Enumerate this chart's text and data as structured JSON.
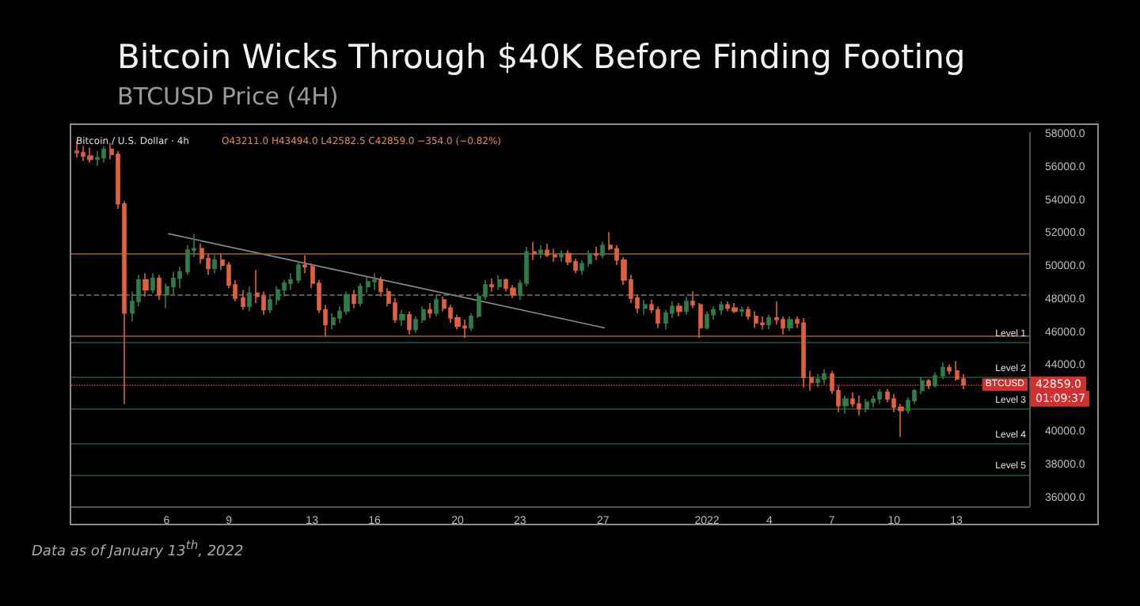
{
  "chart_data": {
    "type": "candlestick",
    "title": "Bitcoin Wicks Through $40K Before Finding Footing",
    "subtitle": "BTCUSD Price (4H)",
    "x": [
      "2021-12-01T16:00",
      "2021-12-02T00:00",
      "2021-12-02T08:00",
      "2021-12-02T16:00",
      "2021-12-03T00:00",
      "2021-12-03T08:00",
      "2021-12-03T16:00",
      "2021-12-04T00:00",
      "2021-12-04T08:00",
      "2021-12-04T16:00",
      "2021-12-05T00:00",
      "2021-12-05T08:00",
      "2021-12-05T16:00",
      "2021-12-06T00:00",
      "2021-12-06T08:00",
      "2021-12-06T16:00",
      "2021-12-07T00:00",
      "2021-12-07T08:00",
      "2021-12-07T16:00",
      "2021-12-08T00:00",
      "2021-12-08T08:00",
      "2021-12-08T16:00",
      "2021-12-09T00:00",
      "2021-12-09T08:00",
      "2021-12-09T16:00",
      "2021-12-10T00:00",
      "2021-12-10T08:00",
      "2021-12-10T16:00",
      "2021-12-11T00:00",
      "2021-12-11T08:00",
      "2021-12-11T16:00",
      "2021-12-12T00:00",
      "2021-12-12T08:00",
      "2021-12-12T16:00",
      "2021-12-13T00:00",
      "2021-12-13T08:00",
      "2021-12-13T16:00",
      "2021-12-14T00:00",
      "2021-12-14T08:00",
      "2021-12-14T16:00",
      "2021-12-15T00:00",
      "2021-12-15T08:00",
      "2021-12-15T16:00",
      "2021-12-16T00:00",
      "2021-12-16T08:00",
      "2021-12-16T16:00",
      "2021-12-17T00:00",
      "2021-12-17T08:00",
      "2021-12-17T16:00",
      "2021-12-18T00:00",
      "2021-12-18T08:00",
      "2021-12-18T16:00",
      "2021-12-19T00:00",
      "2021-12-19T08:00",
      "2021-12-19T16:00",
      "2021-12-20T00:00",
      "2021-12-20T08:00",
      "2021-12-20T16:00",
      "2021-12-21T00:00",
      "2021-12-21T08:00",
      "2021-12-21T16:00",
      "2021-12-22T00:00",
      "2021-12-22T08:00",
      "2021-12-22T16:00",
      "2021-12-23T00:00",
      "2021-12-23T08:00",
      "2021-12-23T16:00",
      "2021-12-24T00:00",
      "2021-12-24T08:00",
      "2021-12-24T16:00",
      "2021-12-25T00:00",
      "2021-12-25T08:00",
      "2021-12-25T16:00",
      "2021-12-26T00:00",
      "2021-12-26T08:00",
      "2021-12-26T16:00",
      "2021-12-27T00:00",
      "2021-12-27T08:00",
      "2021-12-27T16:00",
      "2021-12-28T00:00",
      "2021-12-28T08:00",
      "2021-12-28T16:00",
      "2021-12-29T00:00",
      "2021-12-29T08:00",
      "2021-12-29T16:00",
      "2021-12-30T00:00",
      "2021-12-30T08:00",
      "2021-12-30T16:00",
      "2021-12-31T00:00",
      "2021-12-31T08:00",
      "2021-12-31T16:00",
      "2022-01-01T00:00",
      "2022-01-01T08:00",
      "2022-01-01T16:00",
      "2022-01-02T00:00",
      "2022-01-02T08:00",
      "2022-01-02T16:00",
      "2022-01-03T00:00",
      "2022-01-03T08:00",
      "2022-01-03T16:00",
      "2022-01-04T00:00",
      "2022-01-04T08:00",
      "2022-01-04T16:00",
      "2022-01-05T00:00",
      "2022-01-05T08:00",
      "2022-01-05T16:00",
      "2022-01-06T00:00",
      "2022-01-06T08:00",
      "2022-01-06T16:00",
      "2022-01-07T00:00",
      "2022-01-07T08:00",
      "2022-01-07T16:00",
      "2022-01-08T00:00",
      "2022-01-08T08:00",
      "2022-01-08T16:00",
      "2022-01-09T00:00",
      "2022-01-09T08:00",
      "2022-01-09T16:00",
      "2022-01-10T00:00",
      "2022-01-10T08:00",
      "2022-01-10T16:00",
      "2022-01-11T00:00",
      "2022-01-11T08:00",
      "2022-01-11T16:00",
      "2022-01-12T00:00",
      "2022-01-12T08:00",
      "2022-01-12T16:00",
      "2022-01-13T00:00",
      "2022-01-13T08:00"
    ],
    "ohlc": [
      [
        57000,
        57600,
        56600,
        56900
      ],
      [
        56900,
        57300,
        56400,
        56700
      ],
      [
        56700,
        57200,
        56300,
        56500
      ],
      [
        56500,
        57000,
        56100,
        56600
      ],
      [
        56600,
        57300,
        56300,
        57100
      ],
      [
        57100,
        57500,
        56500,
        56800
      ],
      [
        56800,
        57000,
        53500,
        53800
      ],
      [
        53800,
        54000,
        41700,
        47200
      ],
      [
        47200,
        48500,
        46700,
        47900
      ],
      [
        47900,
        49500,
        47600,
        49200
      ],
      [
        49200,
        49600,
        48200,
        48600
      ],
      [
        48600,
        49600,
        48400,
        49300
      ],
      [
        49300,
        49500,
        48000,
        48300
      ],
      [
        48300,
        49000,
        47500,
        48800
      ],
      [
        48800,
        49700,
        48300,
        49300
      ],
      [
        49300,
        50000,
        48700,
        49700
      ],
      [
        49700,
        51300,
        49500,
        51000
      ],
      [
        51000,
        52000,
        50600,
        51100
      ],
      [
        51100,
        51400,
        50200,
        50500
      ],
      [
        50500,
        50800,
        49500,
        49900
      ],
      [
        49900,
        50700,
        49600,
        50400
      ],
      [
        50400,
        50800,
        49800,
        50100
      ],
      [
        50100,
        50300,
        48700,
        48900
      ],
      [
        48900,
        49200,
        47900,
        48100
      ],
      [
        48100,
        48600,
        47400,
        47600
      ],
      [
        47600,
        48800,
        47300,
        48400
      ],
      [
        48400,
        49800,
        47800,
        48200
      ],
      [
        48200,
        48500,
        47100,
        47400
      ],
      [
        47400,
        48300,
        47200,
        48000
      ],
      [
        48000,
        48800,
        47700,
        48600
      ],
      [
        48600,
        49200,
        48200,
        49000
      ],
      [
        49000,
        49600,
        48600,
        49200
      ],
      [
        49200,
        50300,
        49000,
        50100
      ],
      [
        50100,
        50700,
        49600,
        50000
      ],
      [
        50000,
        50200,
        48700,
        49000
      ],
      [
        49000,
        49200,
        47200,
        47400
      ],
      [
        47400,
        47700,
        45800,
        46500
      ],
      [
        46500,
        47200,
        46200,
        46900
      ],
      [
        46900,
        47600,
        46600,
        47300
      ],
      [
        47300,
        48500,
        47100,
        48300
      ],
      [
        48300,
        48600,
        47500,
        47800
      ],
      [
        47800,
        49000,
        47600,
        48800
      ],
      [
        48800,
        49400,
        48400,
        49100
      ],
      [
        49100,
        49600,
        48600,
        49200
      ],
      [
        49200,
        49400,
        48200,
        48500
      ],
      [
        48500,
        48700,
        47600,
        47800
      ],
      [
        47800,
        48100,
        46600,
        46800
      ],
      [
        46800,
        47400,
        46400,
        47100
      ],
      [
        47100,
        47300,
        45900,
        46200
      ],
      [
        46200,
        47000,
        46000,
        46800
      ],
      [
        46800,
        47600,
        46600,
        47400
      ],
      [
        47400,
        47800,
        46900,
        47200
      ],
      [
        47200,
        48300,
        47000,
        48000
      ],
      [
        48000,
        48200,
        47300,
        47500
      ],
      [
        47500,
        47700,
        46600,
        46900
      ],
      [
        46900,
        47100,
        46200,
        46400
      ],
      [
        46400,
        46800,
        45700,
        46300
      ],
      [
        46300,
        47200,
        46100,
        47000
      ],
      [
        47000,
        48400,
        46900,
        48200
      ],
      [
        48200,
        49200,
        48000,
        48900
      ],
      [
        48900,
        49300,
        48500,
        48800
      ],
      [
        48800,
        49500,
        48600,
        49200
      ],
      [
        49200,
        49300,
        48500,
        48700
      ],
      [
        48700,
        48900,
        48100,
        48300
      ],
      [
        48300,
        49200,
        48000,
        49000
      ],
      [
        49000,
        51200,
        48800,
        50900
      ],
      [
        50900,
        51500,
        50400,
        50800
      ],
      [
        50800,
        51300,
        50500,
        51000
      ],
      [
        51000,
        51400,
        50600,
        50700
      ],
      [
        50700,
        51100,
        50300,
        50600
      ],
      [
        50600,
        51000,
        50300,
        50800
      ],
      [
        50800,
        51000,
        50100,
        50300
      ],
      [
        50300,
        50500,
        49600,
        49800
      ],
      [
        49800,
        50400,
        49500,
        50200
      ],
      [
        50200,
        51000,
        50000,
        50800
      ],
      [
        50800,
        51200,
        50400,
        50700
      ],
      [
        50700,
        51500,
        50500,
        51300
      ],
      [
        51300,
        52100,
        51000,
        51100
      ],
      [
        51100,
        51300,
        50100,
        50400
      ],
      [
        50400,
        50600,
        48900,
        49200
      ],
      [
        49200,
        49500,
        47800,
        48100
      ],
      [
        48100,
        48300,
        47200,
        47500
      ],
      [
        47500,
        48000,
        47100,
        47700
      ],
      [
        47700,
        48000,
        47200,
        47400
      ],
      [
        47400,
        47600,
        46300,
        46600
      ],
      [
        46600,
        47400,
        46200,
        47200
      ],
      [
        47200,
        47900,
        46900,
        47600
      ],
      [
        47600,
        47800,
        47000,
        47300
      ],
      [
        47300,
        48200,
        47100,
        47900
      ],
      [
        47900,
        48500,
        47500,
        47700
      ],
      [
        47700,
        47800,
        45700,
        46300
      ],
      [
        46300,
        47300,
        46200,
        47100
      ],
      [
        47100,
        47600,
        46800,
        47400
      ],
      [
        47400,
        47900,
        47100,
        47700
      ],
      [
        47700,
        47900,
        47300,
        47500
      ],
      [
        47500,
        47800,
        47200,
        47300
      ],
      [
        47300,
        47600,
        47000,
        47400
      ],
      [
        47400,
        47600,
        46800,
        47000
      ],
      [
        47000,
        47300,
        46300,
        46600
      ],
      [
        46600,
        47000,
        46200,
        46500
      ],
      [
        46500,
        47100,
        46200,
        46900
      ],
      [
        46900,
        47900,
        46500,
        46800
      ],
      [
        46800,
        47000,
        45900,
        46300
      ],
      [
        46300,
        47000,
        46100,
        46800
      ],
      [
        46800,
        47000,
        46300,
        46600
      ],
      [
        46600,
        46900,
        42700,
        43300
      ],
      [
        43300,
        43700,
        42500,
        43000
      ],
      [
        43000,
        43500,
        42700,
        43200
      ],
      [
        43200,
        43800,
        42900,
        43500
      ],
      [
        43500,
        43700,
        42300,
        42500
      ],
      [
        42500,
        42800,
        41200,
        41600
      ],
      [
        41600,
        42200,
        41100,
        42000
      ],
      [
        42000,
        42400,
        41500,
        41700
      ],
      [
        41700,
        42200,
        41000,
        41400
      ],
      [
        41400,
        42000,
        41200,
        41800
      ],
      [
        41800,
        42200,
        41500,
        42000
      ],
      [
        42000,
        42600,
        41700,
        42400
      ],
      [
        42400,
        42600,
        41800,
        42000
      ],
      [
        42000,
        42300,
        41200,
        41500
      ],
      [
        41500,
        41700,
        39700,
        41300
      ],
      [
        41300,
        42100,
        41100,
        41900
      ],
      [
        41900,
        42600,
        41700,
        42500
      ],
      [
        42500,
        43300,
        42300,
        43100
      ],
      [
        43100,
        43200,
        42600,
        42800
      ],
      [
        42800,
        43600,
        42700,
        43400
      ],
      [
        43400,
        44200,
        43200,
        43900
      ],
      [
        43900,
        44100,
        43500,
        43700
      ],
      [
        43700,
        44300,
        43100,
        43211
      ],
      [
        43211,
        43494,
        42582.5,
        42859
      ]
    ],
    "colors": [
      "#e0603c",
      "#e0603c",
      "#e0603c",
      "#2e7d46",
      "#2e7d46",
      "#e0603c",
      "#e0603c",
      "#e0603c",
      "#2e7d46",
      "#2e7d46",
      "#e0603c",
      "#2e7d46",
      "#e0603c",
      "#2e7d46",
      "#2e7d46",
      "#2e7d46",
      "#2e7d46",
      "#2e7d46",
      "#e0603c",
      "#e0603c",
      "#2e7d46",
      "#e0603c",
      "#e0603c",
      "#e0603c",
      "#e0603c",
      "#2e7d46",
      "#e0603c",
      "#e0603c",
      "#2e7d46",
      "#2e7d46",
      "#2e7d46",
      "#2e7d46",
      "#2e7d46",
      "#e0603c",
      "#e0603c",
      "#e0603c",
      "#e0603c",
      "#2e7d46",
      "#2e7d46",
      "#2e7d46",
      "#e0603c",
      "#2e7d46",
      "#2e7d46",
      "#2e7d46",
      "#e0603c",
      "#e0603c",
      "#e0603c",
      "#2e7d46",
      "#e0603c",
      "#2e7d46",
      "#2e7d46",
      "#e0603c",
      "#2e7d46",
      "#e0603c",
      "#e0603c",
      "#e0603c",
      "#e0603c",
      "#2e7d46",
      "#2e7d46",
      "#2e7d46",
      "#e0603c",
      "#2e7d46",
      "#e0603c",
      "#e0603c",
      "#2e7d46",
      "#2e7d46",
      "#e0603c",
      "#2e7d46",
      "#e0603c",
      "#e0603c",
      "#2e7d46",
      "#e0603c",
      "#e0603c",
      "#2e7d46",
      "#2e7d46",
      "#e0603c",
      "#2e7d46",
      "#e0603c",
      "#e0603c",
      "#e0603c",
      "#e0603c",
      "#e0603c",
      "#2e7d46",
      "#e0603c",
      "#e0603c",
      "#2e7d46",
      "#2e7d46",
      "#e0603c",
      "#2e7d46",
      "#e0603c",
      "#e0603c",
      "#2e7d46",
      "#2e7d46",
      "#2e7d46",
      "#e0603c",
      "#e0603c",
      "#2e7d46",
      "#e0603c",
      "#e0603c",
      "#e0603c",
      "#2e7d46",
      "#e0603c",
      "#e0603c",
      "#2e7d46",
      "#e0603c",
      "#e0603c",
      "#e0603c",
      "#2e7d46",
      "#2e7d46",
      "#e0603c",
      "#e0603c",
      "#2e7d46",
      "#e0603c",
      "#e0603c",
      "#2e7d46",
      "#2e7d46",
      "#2e7d46",
      "#e0603c",
      "#e0603c",
      "#e0603c",
      "#2e7d46",
      "#2e7d46",
      "#2e7d46",
      "#e0603c",
      "#2e7d46",
      "#2e7d46",
      "#e0603c",
      "#e0603c",
      "#e0603c"
    ],
    "series": [
      {
        "type": "line",
        "color": "#8a8a8a",
        "x": [
          "2021-12-06T02:00",
          "2021-12-27T02:00"
        ],
        "values": [
          52000,
          46300
        ]
      }
    ],
    "xlim": [
      "2021-12-01T10:00",
      "2022-01-16T12:00"
    ],
    "xticks": [
      {
        "value": "2021-12-06",
        "label": "6"
      },
      {
        "value": "2021-12-09",
        "label": "9"
      },
      {
        "value": "2021-12-13",
        "label": "13"
      },
      {
        "value": "2021-12-16",
        "label": "16"
      },
      {
        "value": "2021-12-20",
        "label": "20"
      },
      {
        "value": "2021-12-23",
        "label": "23"
      },
      {
        "value": "2021-12-27",
        "label": "27"
      },
      {
        "value": "2022-01-01",
        "label": "2022"
      },
      {
        "value": "2022-01-04",
        "label": "4"
      },
      {
        "value": "2022-01-07",
        "label": "7"
      },
      {
        "value": "2022-01-10",
        "label": "10"
      },
      {
        "value": "2022-01-13",
        "label": "13"
      }
    ],
    "ylim": [
      35500,
      58100
    ],
    "yticks": [
      {
        "value": 36000,
        "label": "36000.0"
      },
      {
        "value": 38000,
        "label": "38000.0"
      },
      {
        "value": 40000,
        "label": "40000.0"
      },
      {
        "value": 44000,
        "label": "44000.0"
      },
      {
        "value": 46000,
        "label": "46000.0"
      },
      {
        "value": 48000,
        "label": "48000.0"
      },
      {
        "value": 50000,
        "label": "50000.0"
      },
      {
        "value": 52000,
        "label": "52000.0"
      },
      {
        "value": 54000,
        "label": "54000.0"
      },
      {
        "value": 56000,
        "label": "56000.0"
      },
      {
        "value": 58000,
        "label": "58000.0"
      }
    ],
    "ref_lines": [
      {
        "axis": "y",
        "value": 50800,
        "color": "#a0602a",
        "line_style": "solid"
      },
      {
        "axis": "y",
        "value": 45850,
        "color": "#a0602a",
        "line_style": "solid"
      },
      {
        "axis": "y",
        "value": 48300,
        "color": "#777777",
        "line_style": "dashed"
      },
      {
        "axis": "y",
        "value": 45400,
        "label": "Level 1",
        "color": "#1f5a36",
        "line_style": "solid"
      },
      {
        "axis": "y",
        "value": 43300,
        "label": "Level 2",
        "color": "#1f5a36",
        "line_style": "solid"
      },
      {
        "axis": "y",
        "value": 41400,
        "label": "Level 3",
        "color": "#1f5a36",
        "line_style": "solid"
      },
      {
        "axis": "y",
        "value": 39300,
        "label": "Level 4",
        "color": "#1f5a36",
        "line_style": "solid"
      },
      {
        "axis": "y",
        "value": 37400,
        "label": "Level 5",
        "color": "#1f5a36",
        "line_style": "solid"
      },
      {
        "axis": "y",
        "value": 42859,
        "label": "BTCUSD",
        "color": "#d32f2f",
        "line_style": "dotted"
      }
    ],
    "annotations": [
      "Bitcoin / U.S. Dollar · 4h",
      "O43211.0 H43494.0 L42582.5 C42859.0 −354.0 (−0.82%)",
      "01:09:37",
      "Data as of January 13$^{th}$, 2022",
      "42859.0"
    ],
    "grid": false
  }
}
